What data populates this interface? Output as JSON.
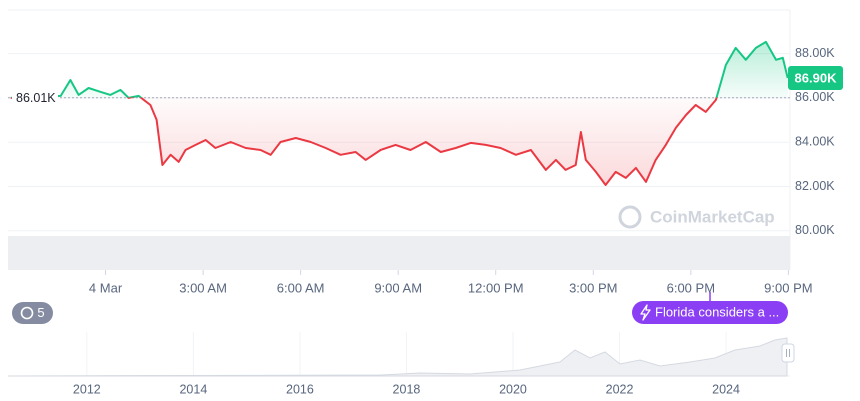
{
  "chart_data": [
    {
      "type": "line",
      "x": [
        -2.92,
        -1.38,
        -1.08,
        -0.83,
        -0.52,
        -0.15,
        0.15,
        0.46,
        0.71,
        1.02,
        1.38,
        1.57,
        1.75,
        2.0,
        2.25,
        2.46,
        2.77,
        3.08,
        3.38,
        3.85,
        4.31,
        4.77,
        5.08,
        5.38,
        5.85,
        6.31,
        6.77,
        7.23,
        7.69,
        8.0,
        8.46,
        8.92,
        9.38,
        9.85,
        10.31,
        10.77,
        11.23,
        11.69,
        12.15,
        12.62,
        13.08,
        13.54,
        13.85,
        14.15,
        14.46,
        14.62,
        14.77,
        15.08,
        15.38,
        15.69,
        16.0,
        16.31,
        16.62,
        16.92,
        17.23,
        17.54,
        17.85,
        18.15,
        18.46,
        18.77,
        19.08,
        19.38,
        19.69,
        20.0,
        20.31,
        20.62,
        20.83,
        20.98
      ],
      "values": [
        86000,
        86090,
        86810,
        86135,
        86450,
        86270,
        86135,
        86360,
        86000,
        86090,
        85680,
        85010,
        82970,
        83430,
        83110,
        83650,
        83880,
        84100,
        83740,
        84010,
        83740,
        83650,
        83430,
        84010,
        84190,
        84010,
        83740,
        83430,
        83560,
        83200,
        83650,
        83880,
        83650,
        84010,
        83560,
        83740,
        83970,
        83880,
        83740,
        83430,
        83650,
        82750,
        83200,
        82750,
        82970,
        84460,
        83200,
        82660,
        82070,
        82660,
        82390,
        82840,
        82210,
        83200,
        83880,
        84650,
        85230,
        85680,
        85370,
        85910,
        87490,
        88260,
        87720,
        88260,
        88530,
        87720,
        87810,
        86900
      ],
      "xlim": [
        -3,
        21.05
      ],
      "xticks": [
        {
          "value": 0,
          "label": "4 Mar"
        },
        {
          "value": 3,
          "label": "3:00 AM"
        },
        {
          "value": 6,
          "label": "6:00 AM"
        },
        {
          "value": 9,
          "label": "9:00 AM"
        },
        {
          "value": 12,
          "label": "12:00 PM"
        },
        {
          "value": 15,
          "label": "3:00 PM"
        },
        {
          "value": 18,
          "label": "6:00 PM"
        },
        {
          "value": 21,
          "label": "9:00 PM"
        }
      ],
      "ylim": [
        78230,
        89970
      ],
      "yticks": [
        {
          "value": 80000,
          "label": "80.00K"
        },
        {
          "value": 82000,
          "label": "82.00K"
        },
        {
          "value": 84000,
          "label": "84.00K"
        },
        {
          "value": 86000,
          "label": "86.00K"
        },
        {
          "value": 88000,
          "label": "88.00K"
        }
      ],
      "grid": true,
      "baseline": {
        "value": 86010,
        "label": "86.01K"
      },
      "last_price": {
        "value": 86900,
        "label": "86.90K"
      },
      "colors": {
        "above": "#16c784",
        "below": "#ea3943"
      }
    },
    {
      "type": "navigator",
      "xlim": [
        2010.52,
        2025.2
      ],
      "xticks": [
        2012,
        2014,
        2016,
        2018,
        2020,
        2022,
        2024
      ]
    }
  ],
  "ui": {
    "watermark": "CoinMarketCap",
    "history_badge": "5",
    "event_label": "Florida considers a ..."
  }
}
